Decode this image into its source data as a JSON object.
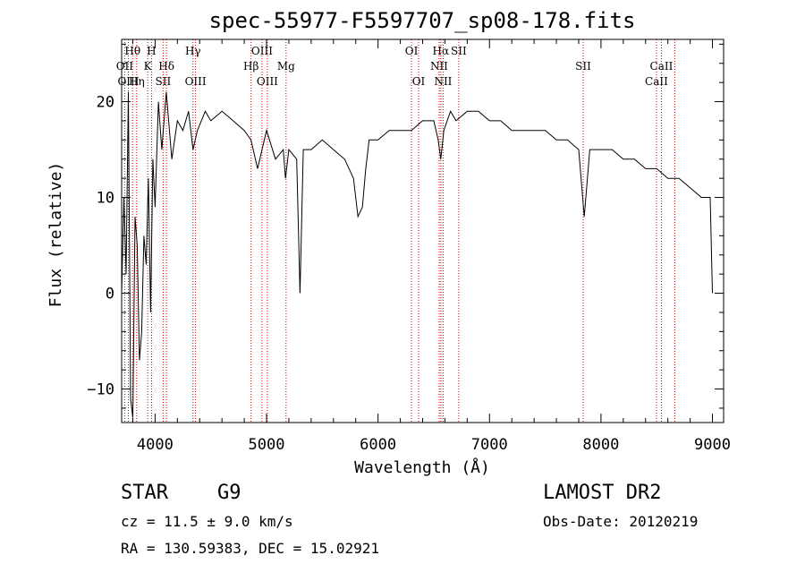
{
  "chart_data": {
    "type": "line",
    "title": "spec-55977-F5597707_sp08-178.fits",
    "xlabel": "Wavelength (Å)",
    "ylabel": "Flux (relative)",
    "xlim": [
      3700,
      9100
    ],
    "ylim": [
      -13.5,
      26.5
    ],
    "xticks": [
      4000,
      5000,
      6000,
      7000,
      8000,
      9000
    ],
    "yticks": [
      -10,
      0,
      10,
      20
    ],
    "ytick_labels": [
      "−10",
      "0",
      "10",
      "20"
    ],
    "grid": false,
    "series": [
      {
        "x": [
          3700,
          3720,
          3740,
          3760,
          3780,
          3800,
          3820,
          3840,
          3860,
          3880,
          3900,
          3920,
          3940,
          3960,
          3980,
          4000,
          4030,
          4060,
          4100,
          4150,
          4200,
          4250,
          4300,
          4340,
          4380,
          4450,
          4500,
          4600,
          4700,
          4800,
          4860,
          4920,
          5000,
          5080,
          5150,
          5170,
          5200,
          5270,
          5300,
          5330,
          5400,
          5500,
          5600,
          5700,
          5780,
          5820,
          5860,
          5890,
          5920,
          6000,
          6100,
          6200,
          6300,
          6400,
          6500,
          6540,
          6563,
          6590,
          6650,
          6700,
          6800,
          6900,
          7000,
          7100,
          7200,
          7300,
          7400,
          7500,
          7600,
          7700,
          7800,
          7850,
          7900,
          8000,
          8100,
          8200,
          8300,
          8400,
          8500,
          8600,
          8700,
          8800,
          8900,
          8980,
          9000
        ],
        "y": [
          0,
          10,
          2,
          21,
          -11,
          -13,
          8,
          5,
          -7,
          -4,
          6,
          3,
          12,
          -2,
          14,
          9,
          20,
          15,
          21,
          14,
          18,
          17,
          19,
          15,
          17,
          19,
          18,
          19,
          18,
          17,
          16,
          13,
          17,
          14,
          15,
          12,
          15,
          14,
          0,
          15,
          15,
          16,
          15,
          14,
          12,
          8,
          9,
          13,
          16,
          16,
          17,
          17,
          17,
          18,
          18,
          16,
          14,
          17,
          19,
          18,
          19,
          19,
          18,
          18,
          17,
          17,
          17,
          17,
          16,
          16,
          15,
          8,
          15,
          15,
          15,
          14,
          14,
          13,
          13,
          12,
          12,
          11,
          10,
          10,
          0
        ]
      }
    ],
    "lines": [
      {
        "label": "Hθ",
        "x": 3798,
        "row": 1
      },
      {
        "label": "OII",
        "x": 3727,
        "row": 2
      },
      {
        "label": "OIII",
        "x": 3760,
        "row": 3
      },
      {
        "label": "Hη",
        "x": 3835,
        "row": 3
      },
      {
        "label": "H",
        "x": 3968,
        "row": 1
      },
      {
        "label": "K",
        "x": 3934,
        "row": 2
      },
      {
        "label": "Hδ",
        "x": 4102,
        "row": 2
      },
      {
        "label": "SII",
        "x": 4072,
        "row": 3
      },
      {
        "label": "Hγ",
        "x": 4340,
        "row": 1
      },
      {
        "label": "OIII",
        "x": 4363,
        "row": 3
      },
      {
        "label": "OIII",
        "x": 4959,
        "row": 1
      },
      {
        "label": "Hβ",
        "x": 4861,
        "row": 2
      },
      {
        "label": "OIII",
        "x": 5007,
        "row": 3
      },
      {
        "label": "Mg",
        "x": 5175,
        "row": 2
      },
      {
        "label": "OI",
        "x": 6300,
        "row": 1
      },
      {
        "label": "OI",
        "x": 6364,
        "row": 3
      },
      {
        "label": "Hα",
        "x": 6563,
        "row": 1
      },
      {
        "label": "NII",
        "x": 6548,
        "row": 2
      },
      {
        "label": "NII",
        "x": 6584,
        "row": 3
      },
      {
        "label": "SII",
        "x": 6724,
        "row": 1
      },
      {
        "label": "SII",
        "x": 7840,
        "row": 2
      },
      {
        "label": "CaII",
        "x": 8542,
        "row": 2
      },
      {
        "label": "CaII",
        "x": 8498,
        "row": 3
      },
      {
        "label": "",
        "x": 8662,
        "row": 0
      }
    ],
    "marker_color": "#cc0000"
  },
  "footer": {
    "object_class": "STAR",
    "subclass": "G9",
    "survey": "LAMOST DR2",
    "redshift": "cz = 11.5 ± 9.0 km/s",
    "obs_date": "Obs-Date: 20120219",
    "coords": "RA = 130.59383, DEC =  15.02921"
  }
}
